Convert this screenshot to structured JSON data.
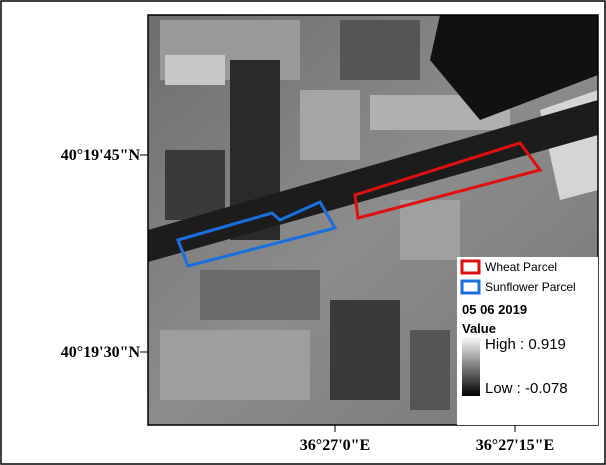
{
  "map": {
    "latitude_labels": [
      "40°19'45\"N",
      "40°19'30\"N"
    ],
    "longitude_labels": [
      "36°27'0\"E",
      "36°27'15\"E"
    ],
    "legend": {
      "items": [
        "Wheat Parcel",
        "Sunflower Parcel"
      ],
      "date": "05 06 2019",
      "value_title": "Value",
      "high": "High : 0.919",
      "low": "Low : -0.078"
    }
  }
}
